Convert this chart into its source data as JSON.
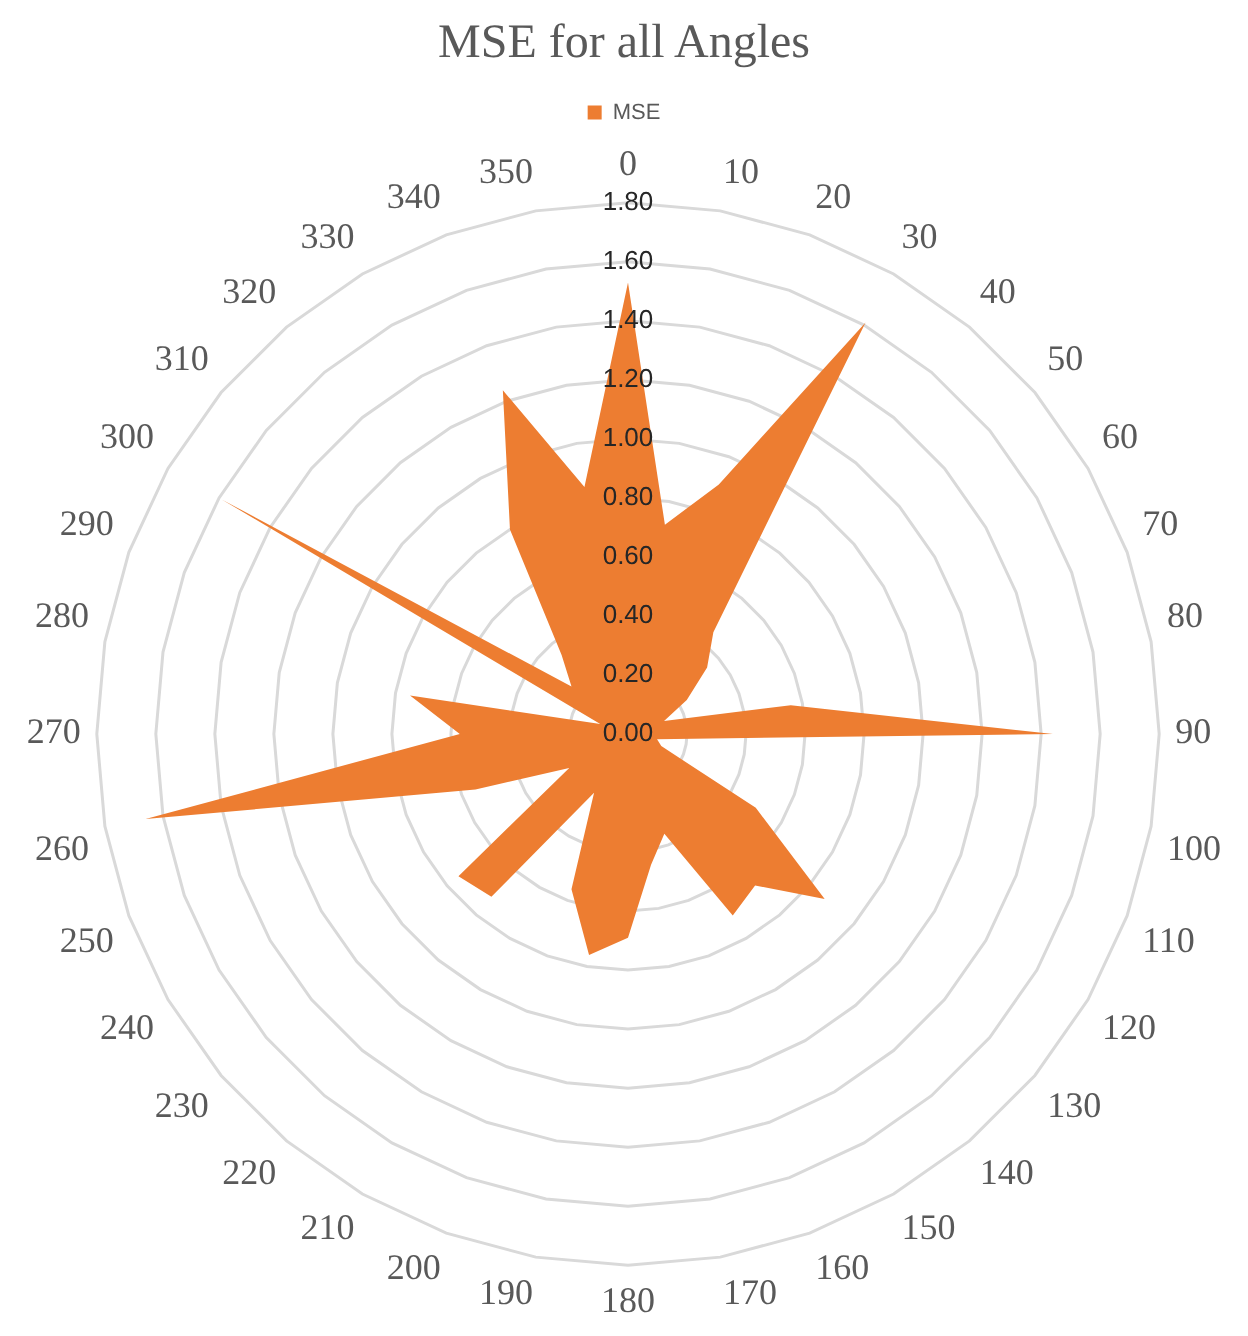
{
  "chart_data": {
    "type": "radar",
    "title": "MSE for all Angles",
    "categories": [
      "0",
      "10",
      "20",
      "30",
      "40",
      "50",
      "60",
      "70",
      "80",
      "90",
      "100",
      "110",
      "120",
      "130",
      "140",
      "150",
      "160",
      "170",
      "180",
      "190",
      "200",
      "210",
      "220",
      "230",
      "240",
      "250",
      "260",
      "270",
      "280",
      "290",
      "300",
      "310",
      "320",
      "330",
      "340",
      "350"
    ],
    "series": [
      {
        "name": "MSE",
        "color": "#ed7d31",
        "values": [
          1.53,
          0.72,
          0.9,
          1.61,
          0.45,
          0.35,
          0.23,
          0.13,
          0.56,
          1.44,
          0.1,
          0.12,
          0.5,
          0.87,
          0.67,
          0.71,
          0.36,
          0.45,
          0.69,
          0.76,
          0.56,
          0.23,
          0.72,
          0.75,
          0.23,
          0.55,
          1.66,
          0.57,
          0.75,
          0.1,
          1.59,
          0.25,
          0.35,
          0.8,
          1.24,
          0.85
        ]
      }
    ],
    "ylim": [
      0,
      1.8
    ],
    "yticks": [
      {
        "value": 0,
        "label": "0.00"
      },
      {
        "value": 0.2,
        "label": "0.20"
      },
      {
        "value": 0.4,
        "label": "0.40"
      },
      {
        "value": 0.6,
        "label": "0.60"
      },
      {
        "value": 0.8,
        "label": "0.80"
      },
      {
        "value": 1,
        "label": "1.00"
      },
      {
        "value": 1.2,
        "label": "1.20"
      },
      {
        "value": 1.4,
        "label": "1.40"
      },
      {
        "value": 1.6,
        "label": "1.60"
      },
      {
        "value": 1.8,
        "label": "1.80"
      }
    ],
    "grid": true,
    "legend": "top",
    "marker": "none"
  }
}
